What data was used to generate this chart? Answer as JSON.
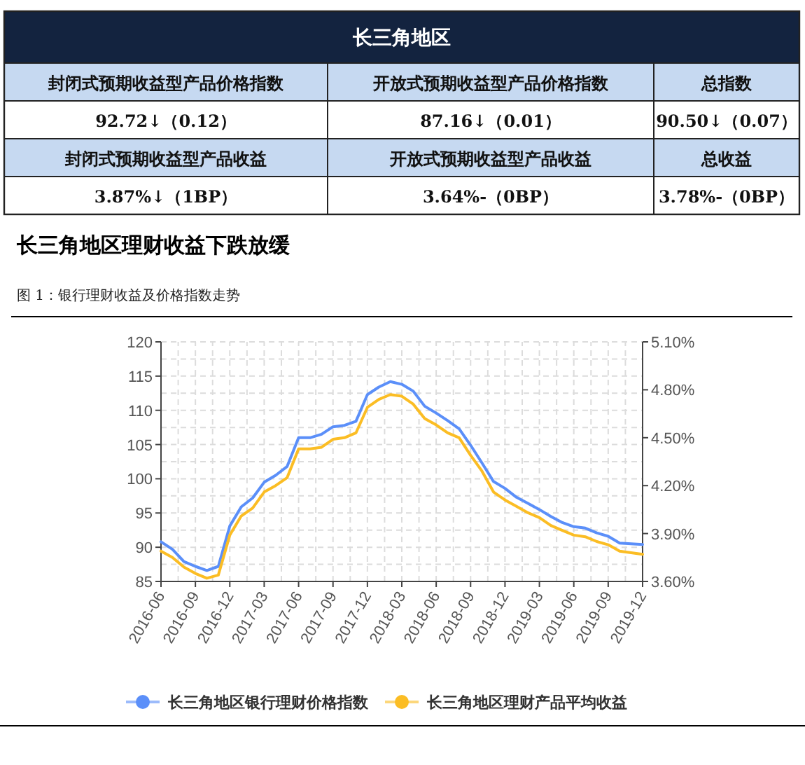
{
  "chart_data": [
    {
      "type": "other",
      "title": "长三角地区",
      "annotations": [
        "封闭式预期收益型产品价格指数",
        "开放式预期收益型产品价格指数",
        "总指数",
        "92.72↓（0.12）",
        "87.16↓（0.01）",
        "90.50↓（0.07）",
        "封闭式预期收益型产品收益",
        "开放式预期收益型产品收益",
        "总收益",
        "3.87%↓（1BP）",
        "3.64%-（0BP）",
        "3.78%-（0BP）"
      ]
    },
    {
      "type": "line",
      "title": "长三角地区理财收益下跌放缓",
      "subtitle": "图 1：银行理财收益及价格指数走势",
      "x": [
        "2016-06",
        "2016-07",
        "2016-08",
        "2016-09",
        "2016-10",
        "2016-11",
        "2016-12",
        "2017-01",
        "2017-02",
        "2017-03",
        "2017-04",
        "2017-05",
        "2017-06",
        "2017-07",
        "2017-08",
        "2017-09",
        "2017-10",
        "2017-11",
        "2017-12",
        "2018-01",
        "2018-02",
        "2018-03",
        "2018-04",
        "2018-05",
        "2018-06",
        "2018-07",
        "2018-08",
        "2018-09",
        "2018-10",
        "2018-11",
        "2018-12",
        "2019-01",
        "2019-02",
        "2019-03",
        "2019-04",
        "2019-05",
        "2019-06",
        "2019-07",
        "2019-08",
        "2019-09",
        "2019-10",
        "2019-11",
        "2019-12"
      ],
      "series": [
        {
          "name": "长三角地区银行理财价格指数",
          "color": "#5b8ff9",
          "values": [
            90.8,
            89.7,
            87.9,
            87.2,
            86.6,
            87.2,
            93.1,
            95.9,
            97.2,
            99.5,
            100.5,
            101.8,
            106.0,
            106.0,
            106.5,
            107.6,
            107.8,
            108.4,
            112.3,
            113.4,
            114.2,
            113.8,
            112.8,
            110.6,
            109.6,
            108.5,
            107.3,
            104.9,
            102.3,
            99.6,
            98.6,
            97.3,
            96.4,
            95.5,
            94.5,
            93.6,
            93.0,
            92.8,
            92.1,
            91.6,
            90.6,
            90.5,
            90.4
          ]
        },
        {
          "name": "长三角地区理财产品平均收益",
          "color": "#fbbd24",
          "axis": "y2",
          "values": [
            3.79,
            3.75,
            3.69,
            3.65,
            3.62,
            3.64,
            3.89,
            4.01,
            4.06,
            4.16,
            4.2,
            4.25,
            4.43,
            4.43,
            4.44,
            4.49,
            4.5,
            4.53,
            4.69,
            4.74,
            4.77,
            4.76,
            4.71,
            4.62,
            4.58,
            4.53,
            4.5,
            4.39,
            4.29,
            4.16,
            4.11,
            4.07,
            4.03,
            4.0,
            3.95,
            3.92,
            3.89,
            3.88,
            3.85,
            3.83,
            3.79,
            3.78,
            3.77
          ]
        }
      ],
      "xlim": [
        "2016-06",
        "2019-12"
      ],
      "xticks": [
        "2016-06",
        "2016-09",
        "2016-12",
        "2017-03",
        "2017-06",
        "2017-09",
        "2017-12",
        "2018-03",
        "2018-06",
        "2018-09",
        "2018-12",
        "2019-03",
        "2019-06",
        "2019-09",
        "2019-12"
      ],
      "ylim": [
        85,
        120
      ],
      "yticks": [
        85,
        90,
        95,
        100,
        105,
        110,
        115,
        120
      ],
      "y2lim": [
        3.6,
        5.1
      ],
      "y2ticks": [
        {
          "value": 3.6,
          "label": "3.60%"
        },
        {
          "value": 3.9,
          "label": "3.90%"
        },
        {
          "value": 4.2,
          "label": "4.20%"
        },
        {
          "value": 4.5,
          "label": "4.50%"
        },
        {
          "value": 4.8,
          "label": "4.80%"
        },
        {
          "value": 5.1,
          "label": "5.10%"
        }
      ],
      "grid": true,
      "legend": "bottom",
      "line_style": "solid"
    }
  ]
}
